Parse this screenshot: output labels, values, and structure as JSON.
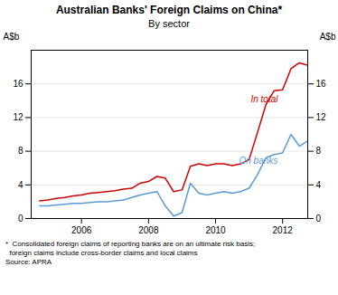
{
  "chart_data": {
    "type": "line",
    "title": "Australian Banks' Foreign Claims on China*",
    "subtitle": "By sector",
    "ylabel": "A$b",
    "y2label": "A$b",
    "footnote": [
      "*  Consolidated foreign claims of reporting banks are on an ultimate risk basis;",
      "  foreign claims include cross-border claims and local claims",
      "Source: APRA"
    ],
    "x": [
      2004.75,
      2005.0,
      2005.25,
      2005.5,
      2005.75,
      2006.0,
      2006.25,
      2006.5,
      2006.75,
      2007.0,
      2007.25,
      2007.5,
      2007.75,
      2008.0,
      2008.25,
      2008.5,
      2008.75,
      2009.0,
      2009.25,
      2009.5,
      2009.75,
      2010.0,
      2010.25,
      2010.5,
      2010.75,
      2011.0,
      2011.25,
      2011.5,
      2011.75,
      2012.0,
      2012.25,
      2012.5,
      2012.75
    ],
    "series": [
      {
        "name": "In total",
        "color": "#cc0000",
        "values": [
          2.1,
          2.2,
          2.4,
          2.5,
          2.7,
          2.8,
          3.0,
          3.1,
          3.2,
          3.3,
          3.5,
          3.6,
          4.2,
          4.4,
          5.0,
          4.8,
          3.2,
          3.4,
          6.2,
          6.5,
          6.3,
          6.5,
          6.5,
          6.3,
          6.5,
          7.0,
          10.2,
          13.5,
          15.2,
          15.3,
          17.8,
          18.5,
          18.2
        ]
      },
      {
        "name": "On banks",
        "color": "#5b9bd5",
        "values": [
          1.5,
          1.5,
          1.6,
          1.7,
          1.8,
          1.8,
          1.9,
          2.0,
          2.0,
          2.1,
          2.2,
          2.5,
          2.8,
          3.0,
          3.2,
          1.5,
          0.3,
          0.7,
          4.2,
          3.0,
          2.8,
          3.0,
          3.2,
          3.0,
          3.2,
          3.6,
          5.2,
          7.2,
          7.6,
          7.8,
          10.0,
          8.6,
          9.2
        ]
      }
    ],
    "annotations": [
      {
        "text": "In total",
        "x": 2011.05,
        "y": 14.2,
        "color": "#cc0000"
      },
      {
        "text": "On banks",
        "x": 2010.7,
        "y": 6.8,
        "color": "#5b9bd5"
      }
    ],
    "xlim": [
      2004.5,
      2012.75
    ],
    "xticks": [
      2006,
      2008,
      2010,
      2012
    ],
    "ylim": [
      0,
      20
    ],
    "yticks": [
      0,
      4,
      8,
      12,
      16
    ],
    "y2lim": [
      0,
      20
    ],
    "y2ticks": [
      0,
      4,
      8,
      12,
      16
    ],
    "grid": true
  }
}
